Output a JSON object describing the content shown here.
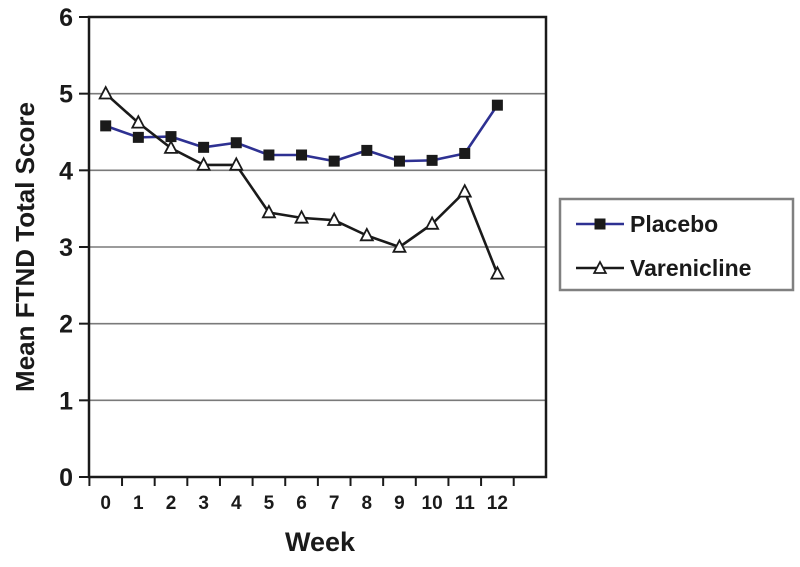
{
  "figure": {
    "background": "#ffffff"
  },
  "chart_data": {
    "type": "line",
    "title": "",
    "xlabel": "Week",
    "ylabel": "Mean FTND Total Score",
    "categories": [
      0,
      1,
      2,
      3,
      4,
      5,
      6,
      7,
      8,
      9,
      10,
      11,
      12
    ],
    "xticklabels": [
      "0",
      "1",
      "2",
      "3",
      "4",
      "5",
      "6",
      "7",
      "8",
      "9",
      "10",
      "11",
      "12"
    ],
    "yticks": [
      0,
      1,
      2,
      3,
      4,
      5,
      6
    ],
    "ylim": [
      0,
      6
    ],
    "grid": "horizontal",
    "gridline_values": [
      1,
      2,
      3,
      4,
      5
    ],
    "legend_position": "right-outside",
    "series": [
      {
        "name": "Placebo",
        "marker": "filled-square",
        "line_color": "#2e3192",
        "marker_color": "#1a1a1a",
        "values": [
          4.58,
          4.43,
          4.44,
          4.3,
          4.36,
          4.2,
          4.2,
          4.12,
          4.26,
          4.12,
          4.13,
          4.22,
          4.85
        ]
      },
      {
        "name": "Varenicline",
        "marker": "open-triangle",
        "line_color": "#1a1a1a",
        "marker_color": "#ffffff",
        "values": [
          5.0,
          4.62,
          4.29,
          4.07,
          4.07,
          3.45,
          3.38,
          3.35,
          3.15,
          3.0,
          3.3,
          3.72,
          2.65
        ]
      }
    ],
    "colors": {
      "axis": "#1a1a1a",
      "grid": "#7a7a7a",
      "legend_border": "#808080",
      "background": "#ffffff"
    }
  }
}
